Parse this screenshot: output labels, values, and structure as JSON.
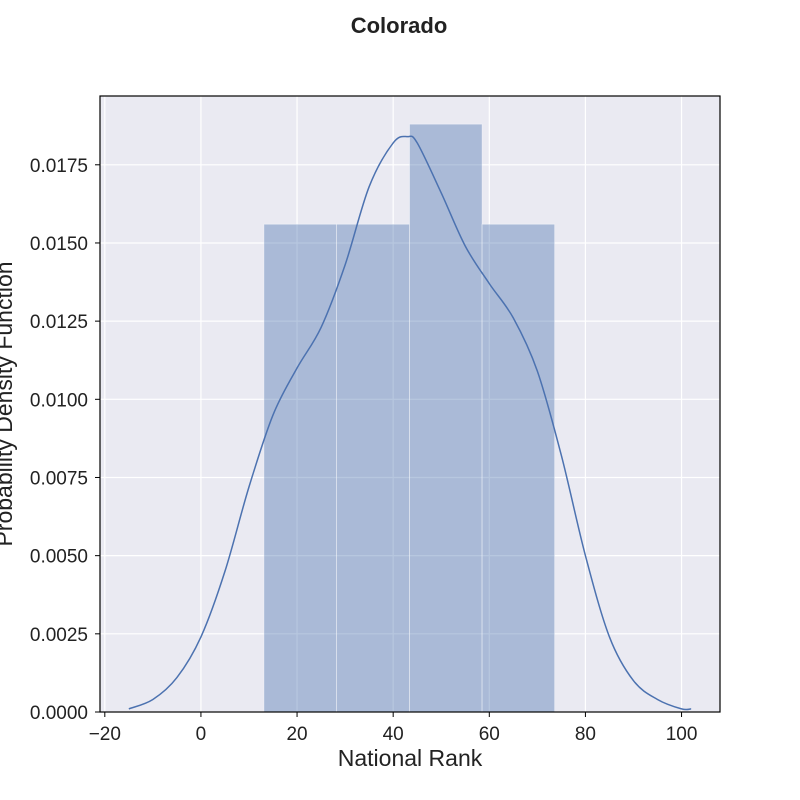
{
  "chart_data": {
    "type": "bar",
    "title": "Colorado",
    "xlabel": "National Rank",
    "ylabel": "Probability Density Function",
    "xlim": [
      -21,
      108
    ],
    "ylim": [
      0,
      0.0197
    ],
    "x_ticks": [
      -20,
      0,
      20,
      40,
      60,
      80,
      100
    ],
    "x_tick_labels": [
      "−20",
      "0",
      "20",
      "40",
      "60",
      "80",
      "100"
    ],
    "y_ticks": [
      0,
      0.0025,
      0.005,
      0.0075,
      0.01,
      0.0125,
      0.015,
      0.0175
    ],
    "y_tick_labels": [
      "0.0000",
      "0.0025",
      "0.0050",
      "0.0075",
      "0.0100",
      "0.0125",
      "0.0150",
      "0.0175"
    ],
    "grid": true,
    "histogram": {
      "bins": [
        {
          "x0": 13.1,
          "x1": 28.2,
          "density": 0.0156
        },
        {
          "x0": 28.2,
          "x1": 43.4,
          "density": 0.0156
        },
        {
          "x0": 43.4,
          "x1": 58.5,
          "density": 0.0188
        },
        {
          "x0": 58.5,
          "x1": 73.6,
          "density": 0.0156
        }
      ],
      "color": "#4c72b0",
      "opacity": 0.4
    },
    "kde": {
      "x": [
        -15,
        -10,
        -5,
        0,
        5,
        10,
        15,
        20,
        25,
        30,
        35,
        40,
        43,
        45,
        50,
        55,
        60,
        65,
        70,
        75,
        80,
        85,
        90,
        95,
        100,
        102
      ],
      "y": [
        0.0001,
        0.0004,
        0.0011,
        0.0024,
        0.0045,
        0.0072,
        0.0095,
        0.011,
        0.0123,
        0.0143,
        0.0168,
        0.0182,
        0.0184,
        0.0182,
        0.0166,
        0.0149,
        0.0137,
        0.0126,
        0.0109,
        0.0082,
        0.005,
        0.0024,
        0.001,
        0.0004,
        0.0001,
        0.0001
      ],
      "color": "#4c72b0"
    }
  },
  "colors": {
    "plot_background": "#eaeaf2",
    "grid": "#ffffff",
    "frame": "#000000",
    "text": "#222222"
  }
}
